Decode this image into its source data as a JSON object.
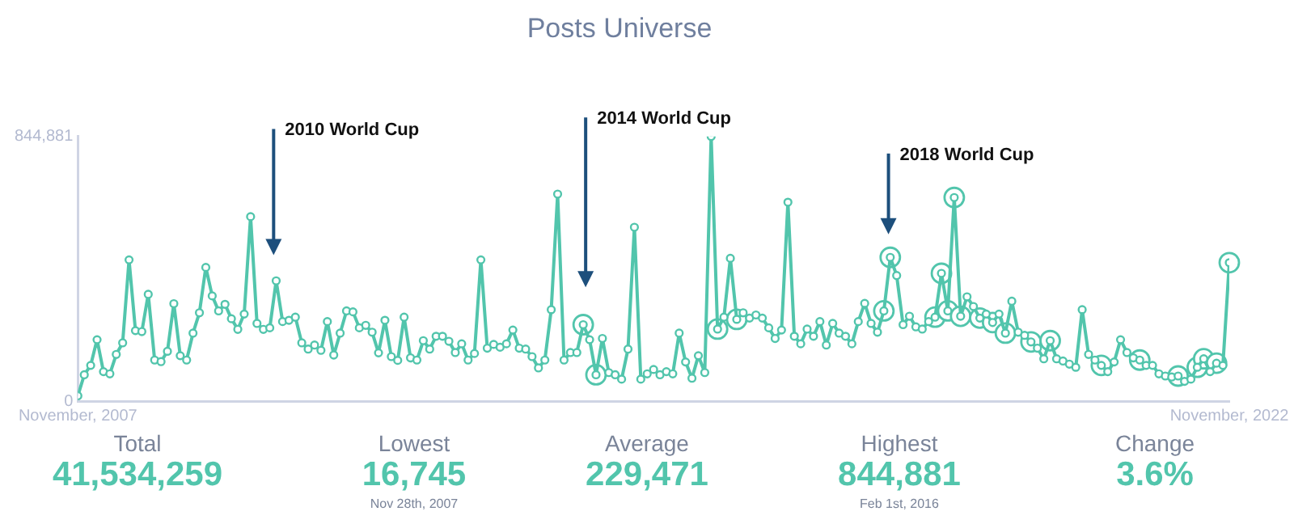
{
  "chart_data": {
    "type": "line",
    "title": "Posts Universe",
    "x": [
      "2007-11",
      "2007-12",
      "2008-01",
      "2008-02",
      "2008-03",
      "2008-04",
      "2008-05",
      "2008-06",
      "2008-07",
      "2008-08",
      "2008-09",
      "2008-10",
      "2008-11",
      "2008-12",
      "2009-01",
      "2009-02",
      "2009-03",
      "2009-04",
      "2009-05",
      "2009-06",
      "2009-07",
      "2009-08",
      "2009-09",
      "2009-10",
      "2009-11",
      "2009-12",
      "2010-01",
      "2010-02",
      "2010-03",
      "2010-04",
      "2010-05",
      "2010-06",
      "2010-07",
      "2010-08",
      "2010-09",
      "2010-10",
      "2010-11",
      "2010-12",
      "2011-01",
      "2011-02",
      "2011-03",
      "2011-04",
      "2011-05",
      "2011-06",
      "2011-07",
      "2011-08",
      "2011-09",
      "2011-10",
      "2011-11",
      "2011-12",
      "2012-01",
      "2012-02",
      "2012-03",
      "2012-04",
      "2012-05",
      "2012-06",
      "2012-07",
      "2012-08",
      "2012-09",
      "2012-10",
      "2012-11",
      "2012-12",
      "2013-01",
      "2013-02",
      "2013-03",
      "2013-04",
      "2013-05",
      "2013-06",
      "2013-07",
      "2013-08",
      "2013-09",
      "2013-10",
      "2013-11",
      "2013-12",
      "2014-01",
      "2014-02",
      "2014-03",
      "2014-04",
      "2014-05",
      "2014-06",
      "2014-07",
      "2014-08",
      "2014-09",
      "2014-10",
      "2014-11",
      "2014-12",
      "2015-01",
      "2015-02",
      "2015-03",
      "2015-04",
      "2015-05",
      "2015-06",
      "2015-07",
      "2015-08",
      "2015-09",
      "2015-10",
      "2015-11",
      "2015-12",
      "2016-01",
      "2016-02",
      "2016-03",
      "2016-04",
      "2016-05",
      "2016-06",
      "2016-07",
      "2016-08",
      "2016-09",
      "2016-10",
      "2016-11",
      "2016-12",
      "2017-01",
      "2017-02",
      "2017-03",
      "2017-04",
      "2017-05",
      "2017-06",
      "2017-07",
      "2017-08",
      "2017-09",
      "2017-10",
      "2017-11",
      "2017-12",
      "2018-01",
      "2018-02",
      "2018-03",
      "2018-04",
      "2018-05",
      "2018-06",
      "2018-07",
      "2018-08",
      "2018-09",
      "2018-10",
      "2018-11",
      "2018-12",
      "2019-01",
      "2019-02",
      "2019-03",
      "2019-04",
      "2019-05",
      "2019-06",
      "2019-07",
      "2019-08",
      "2019-09",
      "2019-10",
      "2019-11",
      "2019-12",
      "2020-01",
      "2020-02",
      "2020-03",
      "2020-04",
      "2020-05",
      "2020-06",
      "2020-07",
      "2020-08",
      "2020-09",
      "2020-10",
      "2020-11",
      "2020-12",
      "2021-01",
      "2021-02",
      "2021-03",
      "2021-04",
      "2021-05",
      "2021-06",
      "2021-07",
      "2021-08",
      "2021-09",
      "2021-10",
      "2021-11",
      "2021-12",
      "2022-01",
      "2022-02",
      "2022-03",
      "2022-04",
      "2022-05",
      "2022-06",
      "2022-07",
      "2022-08",
      "2022-09",
      "2022-10",
      "2022-11"
    ],
    "series": [
      {
        "color": "#52c5ac",
        "values": [
          16745,
          84000,
          114000,
          196000,
          94000,
          87000,
          149000,
          186000,
          451000,
          225000,
          222000,
          341000,
          131000,
          126000,
          159000,
          311000,
          145000,
          131000,
          217000,
          282000,
          427000,
          336000,
          288000,
          309000,
          263000,
          229000,
          278000,
          589000,
          248000,
          229000,
          234000,
          384000,
          254000,
          258000,
          268000,
          186000,
          166000,
          179000,
          162000,
          254000,
          147000,
          217000,
          288000,
          285000,
          234000,
          242000,
          220000,
          154000,
          258000,
          142000,
          130000,
          268000,
          138000,
          131000,
          193000,
          166000,
          207000,
          207000,
          191000,
          155000,
          183000,
          131000,
          152000,
          451000,
          169000,
          181000,
          172000,
          183000,
          227000,
          169000,
          166000,
          142000,
          106000,
          131000,
          292000,
          661000,
          131000,
          155000,
          155000,
          244000,
          196000,
          84000,
          200000,
          91000,
          84000,
          70000,
          166000,
          555000,
          70000,
          87000,
          101000,
          84000,
          94000,
          87000,
          217000,
          125000,
          73000,
          145000,
          91000,
          844881,
          230000,
          268000,
          456000,
          261000,
          282000,
          265000,
          275000,
          265000,
          234000,
          200000,
          227000,
          635000,
          207000,
          183000,
          230000,
          207000,
          254000,
          179000,
          248000,
          217000,
          207000,
          183000,
          254000,
          312000,
          248000,
          220000,
          288000,
          459000,
          401000,
          244000,
          271000,
          237000,
          230000,
          254000,
          268000,
          408000,
          288000,
          650000,
          271000,
          333000,
          302000,
          265000,
          278000,
          251000,
          278000,
          217000,
          319000,
          220000,
          210000,
          189000,
          169000,
          135000,
          193000,
          135000,
          128000,
          118000,
          108000,
          292000,
          149000,
          131000,
          114000,
          94000,
          125000,
          196000,
          155000,
          138000,
          131000,
          114000,
          114000,
          87000,
          80000,
          77000,
          80000,
          63000,
          70000,
          108000,
          135000,
          94000,
          121000,
          114000,
          442000
        ]
      }
    ],
    "xlim": [
      "2007-11",
      "2022-11"
    ],
    "xticks": [
      {
        "value": "2007-11",
        "label": "November, 2007"
      },
      {
        "value": "2022-11",
        "label": "November, 2022"
      }
    ],
    "ylim": [
      0,
      844881
    ],
    "yticks": [
      0,
      {
        "value": 844881,
        "label": "844,881"
      }
    ],
    "grid": false,
    "legend": false,
    "marker": "circle",
    "line_style": "solid",
    "annotations": [
      "2010 World Cup",
      "2014 World Cup",
      "2018 World Cup",
      "Total",
      "41,534,259",
      "Lowest",
      "16,745",
      "Nov 28th, 2007",
      "Average",
      "229,471",
      "Highest",
      "844,881",
      "Feb 1st, 2016",
      "Change",
      "3.6%"
    ]
  }
}
